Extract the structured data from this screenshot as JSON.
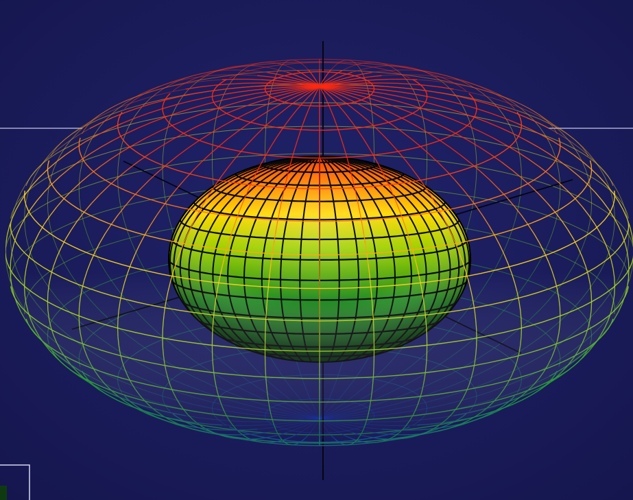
{
  "scene": {
    "subject": "nested-ellipsoid-wireframe-render",
    "colors": {
      "background": "#1a1b5a",
      "frame_line": "#c8c8e8",
      "axis": "#050514",
      "outer_top": "#ff2a10",
      "outer_mid": "#ffd21e",
      "outer_equator": "#a8d418",
      "outer_low": "#1e9a38",
      "outer_bottom": "#1030b8",
      "inner_top": "#ff3a00",
      "inner_upper": "#ffd800",
      "inner_mid": "#9cd000",
      "inner_low": "#1c8a1c",
      "inner_bottom": "#0b3f10",
      "inner_grid": "#0a0a0a"
    }
  }
}
